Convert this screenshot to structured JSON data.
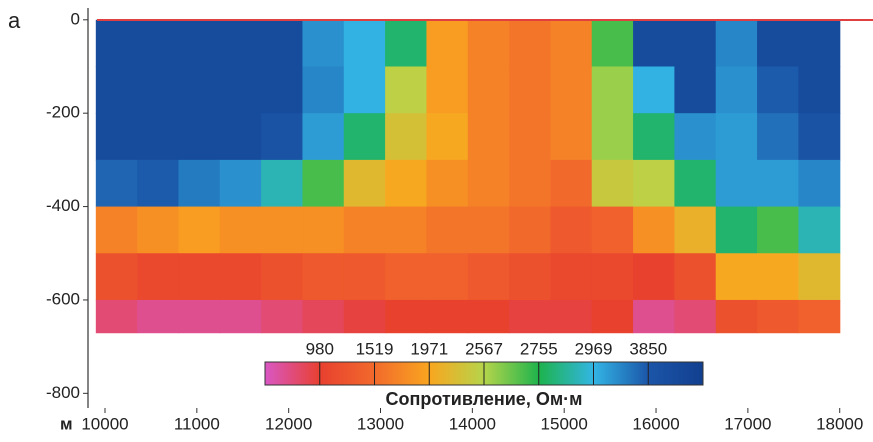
{
  "chart_data": {
    "type": "heatmap",
    "panel_label": "а",
    "x_unit": "м",
    "colorbar_title": "Сопротивление, Ом·м",
    "x_edges": [
      9900,
      10350,
      10800,
      11250,
      11700,
      12150,
      12600,
      13050,
      13500,
      13950,
      14400,
      14850,
      15300,
      15750,
      16200,
      16650,
      17100,
      17550,
      18000
    ],
    "y_edges": [
      0,
      -100,
      -200,
      -300,
      -400,
      -500,
      -600,
      -670
    ],
    "values": [
      [
        4000,
        4000,
        4000,
        4000,
        4000,
        3300,
        3000,
        2800,
        1900,
        1700,
        1600,
        1700,
        2700,
        4000,
        4000,
        3400,
        4000,
        4000
      ],
      [
        4000,
        4000,
        4000,
        4000,
        4000,
        3400,
        3000,
        2500,
        1900,
        1700,
        1600,
        1700,
        2600,
        3000,
        4000,
        3300,
        3800,
        4000
      ],
      [
        4000,
        4000,
        4000,
        4000,
        3900,
        3200,
        2800,
        2300,
        2000,
        1700,
        1600,
        1700,
        2600,
        2800,
        3300,
        3200,
        3600,
        3900
      ],
      [
        3700,
        3800,
        3500,
        3300,
        2900,
        2700,
        2200,
        2000,
        1800,
        1700,
        1600,
        1500,
        2400,
        2500,
        2800,
        3200,
        3200,
        3400
      ],
      [
        1700,
        1800,
        1900,
        1800,
        1800,
        1800,
        1700,
        1700,
        1600,
        1600,
        1500,
        1300,
        1400,
        1800,
        2100,
        2800,
        2700,
        2900
      ],
      [
        1200,
        1100,
        1100,
        1100,
        1200,
        1300,
        1300,
        1400,
        1400,
        1300,
        1200,
        1100,
        1100,
        1000,
        1200,
        2000,
        2000,
        2200
      ],
      [
        850,
        800,
        800,
        800,
        850,
        900,
        950,
        1000,
        1000,
        1000,
        950,
        950,
        1000,
        800,
        850,
        1200,
        1300,
        1400
      ]
    ],
    "xlim": [
      9815,
      18210
    ],
    "xticks": [
      10000,
      11000,
      12000,
      13000,
      14000,
      15000,
      16000,
      17000,
      18000
    ],
    "ylim": [
      -810,
      21
    ],
    "yticks": [
      0,
      -200,
      -400,
      -600,
      -800
    ],
    "clim": [
      700,
      4200
    ],
    "cticks": [
      980,
      1519,
      1971,
      2567,
      2755,
      2969,
      3850
    ],
    "colors": [
      "#d957c4",
      "#e8402f",
      "#f26a2c",
      "#f9a61f",
      "#b5d54b",
      "#1db34c",
      "#33b5e5",
      "#1b55a8",
      "#123f8f"
    ]
  }
}
